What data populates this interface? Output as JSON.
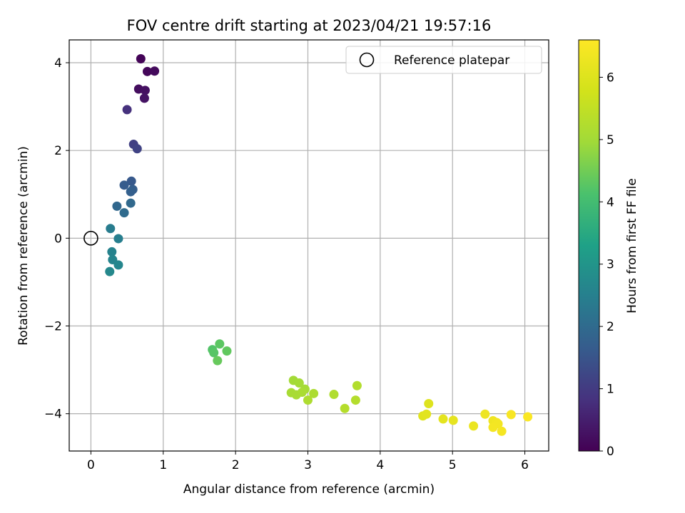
{
  "chart_data": {
    "type": "scatter",
    "title": "FOV centre drift starting at 2023/04/21 19:57:16",
    "xlabel": "Angular distance from reference (arcmin)",
    "ylabel": "Rotation from reference (arcmin)",
    "xlim": [
      -0.3,
      6.33
    ],
    "ylim": [
      -4.85,
      4.52
    ],
    "xticks": [
      0,
      1,
      2,
      3,
      4,
      5,
      6
    ],
    "yticks": [
      -4,
      -2,
      0,
      2,
      4
    ],
    "xtick_labels": [
      "0",
      "1",
      "2",
      "3",
      "4",
      "5",
      "6"
    ],
    "ytick_labels": [
      "−4",
      "−2",
      "0",
      "2",
      "4"
    ],
    "grid": true,
    "legend": {
      "placement": "top-right",
      "label": "Reference platepar"
    },
    "reference": {
      "x": 0,
      "y": 0
    },
    "colorbar": {
      "label": "Hours from first FF file",
      "colormap": "viridis",
      "range": [
        0,
        6.6
      ],
      "ticks": [
        0,
        1,
        2,
        3,
        4,
        5,
        6
      ],
      "tick_labels": [
        "0",
        "1",
        "2",
        "3",
        "4",
        "5",
        "6"
      ]
    },
    "points": [
      {
        "x": 0.69,
        "y": 4.09,
        "c": 0.05
      },
      {
        "x": 0.78,
        "y": 3.8,
        "c": 0.1
      },
      {
        "x": 0.88,
        "y": 3.81,
        "c": 0.15
      },
      {
        "x": 0.66,
        "y": 3.4,
        "c": 0.2
      },
      {
        "x": 0.75,
        "y": 3.37,
        "c": 0.25
      },
      {
        "x": 0.74,
        "y": 3.19,
        "c": 0.3
      },
      {
        "x": 0.5,
        "y": 2.93,
        "c": 0.8
      },
      {
        "x": 0.59,
        "y": 2.14,
        "c": 1.1
      },
      {
        "x": 0.64,
        "y": 2.04,
        "c": 1.15
      },
      {
        "x": 0.56,
        "y": 1.3,
        "c": 1.6
      },
      {
        "x": 0.46,
        "y": 1.21,
        "c": 1.65
      },
      {
        "x": 0.58,
        "y": 1.11,
        "c": 1.7
      },
      {
        "x": 0.55,
        "y": 1.06,
        "c": 1.75
      },
      {
        "x": 0.36,
        "y": 0.73,
        "c": 1.9
      },
      {
        "x": 0.55,
        "y": 0.8,
        "c": 1.95
      },
      {
        "x": 0.46,
        "y": 0.58,
        "c": 2.0
      },
      {
        "x": 0.27,
        "y": 0.22,
        "c": 2.4
      },
      {
        "x": 0.38,
        "y": -0.01,
        "c": 2.45
      },
      {
        "x": 0.29,
        "y": -0.31,
        "c": 2.55
      },
      {
        "x": 0.3,
        "y": -0.49,
        "c": 2.6
      },
      {
        "x": 0.38,
        "y": -0.61,
        "c": 2.65
      },
      {
        "x": 0.26,
        "y": -0.76,
        "c": 2.7
      },
      {
        "x": 1.68,
        "y": -2.54,
        "c": 4.2
      },
      {
        "x": 1.7,
        "y": -2.61,
        "c": 4.25
      },
      {
        "x": 1.78,
        "y": -2.41,
        "c": 4.3
      },
      {
        "x": 1.88,
        "y": -2.57,
        "c": 4.35
      },
      {
        "x": 1.75,
        "y": -2.79,
        "c": 4.4
      },
      {
        "x": 2.8,
        "y": -3.24,
        "c": 5.0
      },
      {
        "x": 2.88,
        "y": -3.3,
        "c": 5.02
      },
      {
        "x": 2.96,
        "y": -3.44,
        "c": 5.05
      },
      {
        "x": 2.77,
        "y": -3.52,
        "c": 5.08
      },
      {
        "x": 2.84,
        "y": -3.57,
        "c": 5.1
      },
      {
        "x": 2.92,
        "y": -3.51,
        "c": 5.12
      },
      {
        "x": 3.08,
        "y": -3.54,
        "c": 5.15
      },
      {
        "x": 3.0,
        "y": -3.69,
        "c": 5.18
      },
      {
        "x": 3.36,
        "y": -3.56,
        "c": 5.22
      },
      {
        "x": 3.68,
        "y": -3.36,
        "c": 5.25
      },
      {
        "x": 3.66,
        "y": -3.69,
        "c": 5.28
      },
      {
        "x": 3.51,
        "y": -3.88,
        "c": 5.3
      },
      {
        "x": 4.67,
        "y": -3.77,
        "c": 6.0
      },
      {
        "x": 4.59,
        "y": -4.05,
        "c": 6.05
      },
      {
        "x": 4.64,
        "y": -4.01,
        "c": 6.08
      },
      {
        "x": 4.87,
        "y": -4.12,
        "c": 6.12
      },
      {
        "x": 5.01,
        "y": -4.15,
        "c": 6.15
      },
      {
        "x": 5.29,
        "y": -4.28,
        "c": 6.25
      },
      {
        "x": 5.45,
        "y": -4.01,
        "c": 6.32
      },
      {
        "x": 5.56,
        "y": -4.16,
        "c": 6.35
      },
      {
        "x": 5.61,
        "y": -4.2,
        "c": 6.38
      },
      {
        "x": 5.63,
        "y": -4.23,
        "c": 6.4
      },
      {
        "x": 5.56,
        "y": -4.31,
        "c": 6.42
      },
      {
        "x": 5.68,
        "y": -4.4,
        "c": 6.45
      },
      {
        "x": 5.81,
        "y": -4.02,
        "c": 6.5
      },
      {
        "x": 6.04,
        "y": -4.07,
        "c": 6.55
      }
    ]
  }
}
